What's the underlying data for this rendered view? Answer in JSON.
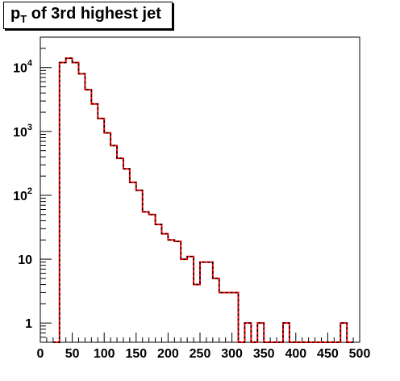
{
  "chart_data": {
    "type": "histogram",
    "title_base": "p",
    "title_sub": "T",
    "title_rest": " of 3rd highest jet",
    "x": {
      "min": 0,
      "max": 500,
      "bin_width": 10,
      "major_ticks": [
        0,
        50,
        100,
        150,
        200,
        250,
        300,
        350,
        400,
        450,
        500
      ],
      "tick_labels": [
        "0",
        "50",
        "100",
        "150",
        "200",
        "250",
        "300",
        "350",
        "400",
        "450",
        "500"
      ]
    },
    "y": {
      "scale": "log",
      "min": 0.5,
      "max": 30000,
      "ticks": [
        {
          "value": 10000,
          "base": "10",
          "exp": "4"
        },
        {
          "value": 1000,
          "base": "10",
          "exp": "3"
        },
        {
          "value": 100,
          "base": "10",
          "exp": "2"
        },
        {
          "value": 10,
          "base": "10",
          "exp": ""
        },
        {
          "value": 1,
          "base": "1",
          "exp": ""
        }
      ]
    },
    "bin_start": 20,
    "counts": [
      0,
      12000,
      14000,
      12000,
      8000,
      4500,
      2700,
      1600,
      950,
      600,
      380,
      260,
      160,
      120,
      55,
      50,
      35,
      25,
      20,
      19,
      10,
      11,
      4,
      9,
      9,
      5,
      3,
      3,
      3,
      0,
      1,
      0,
      1,
      0,
      0,
      0,
      1,
      0,
      0,
      0,
      0,
      0,
      0,
      0,
      0,
      1,
      0
    ],
    "series": [
      {
        "color": "#ff0000",
        "style": "solid"
      },
      {
        "color": "#000000",
        "style": "dashed"
      }
    ]
  }
}
